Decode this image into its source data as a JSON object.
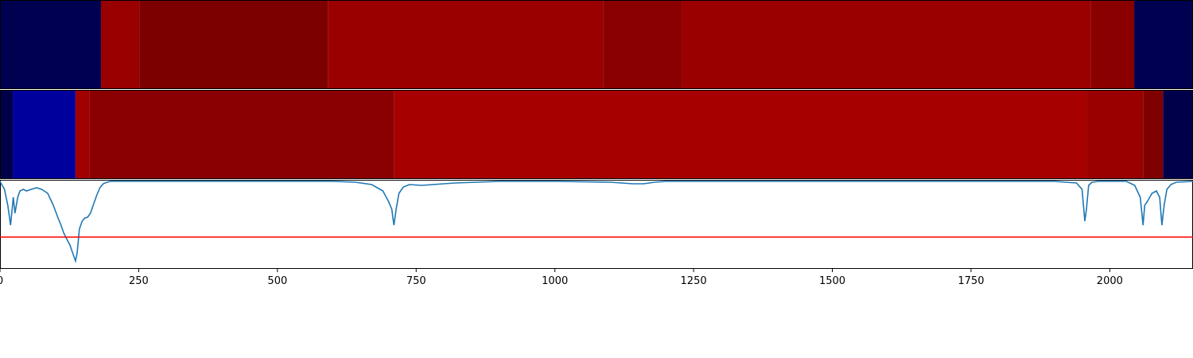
{
  "chart_data": [
    {
      "type": "heatmap",
      "panel": "top-band",
      "colormap": "seismic",
      "x_segments": [
        {
          "x0": 0,
          "x1": 182,
          "color": "#000050"
        },
        {
          "x0": 182,
          "x1": 251,
          "color": "#990000"
        },
        {
          "x0": 251,
          "x1": 591,
          "color": "#7d0000"
        },
        {
          "x0": 591,
          "x1": 1087,
          "color": "#9a0000"
        },
        {
          "x0": 1087,
          "x1": 1229,
          "color": "#8a0000"
        },
        {
          "x0": 1229,
          "x1": 1966,
          "color": "#9a0000"
        },
        {
          "x0": 1966,
          "x1": 2044,
          "color": "#8a0000"
        },
        {
          "x0": 2044,
          "x1": 2150,
          "color": "#000050"
        }
      ]
    },
    {
      "type": "heatmap",
      "panel": "middle-band",
      "colormap": "seismic",
      "x_segments": [
        {
          "x0": 0,
          "x1": 23,
          "color": "#00004a"
        },
        {
          "x0": 23,
          "x1": 136,
          "color": "#00009c"
        },
        {
          "x0": 136,
          "x1": 161,
          "color": "#a00000"
        },
        {
          "x0": 161,
          "x1": 710,
          "color": "#8a0000"
        },
        {
          "x0": 710,
          "x1": 1958,
          "color": "#a60000"
        },
        {
          "x0": 1958,
          "x1": 2060,
          "color": "#9a0000"
        },
        {
          "x0": 2060,
          "x1": 2096,
          "color": "#800000"
        },
        {
          "x0": 2096,
          "x1": 2150,
          "color": "#00004a"
        }
      ]
    },
    {
      "type": "line",
      "panel": "bottom-line",
      "xlim": [
        0,
        2150
      ],
      "ylim": [
        -1.1,
        0.02
      ],
      "x_ticks": [
        0,
        250,
        500,
        750,
        1000,
        1250,
        1500,
        1750,
        2000
      ],
      "x_tick_labels": [
        "0",
        "250",
        "500",
        "750",
        "1000",
        "1250",
        "1500",
        "1750",
        "2000"
      ],
      "grid": false,
      "series": [
        {
          "color": "#1f77b4",
          "x": [
            0,
            8,
            14,
            19,
            24,
            27,
            32,
            36,
            42,
            48,
            56,
            66,
            75,
            86,
            96,
            104,
            110,
            115,
            120,
            126,
            131,
            136,
            139,
            143,
            148,
            153,
            158,
            163,
            168,
            174,
            180,
            186,
            193,
            200,
            230,
            300,
            400,
            500,
            600,
            640,
            670,
            690,
            700,
            706,
            710,
            714,
            719,
            727,
            738,
            760,
            820,
            900,
            1000,
            1100,
            1140,
            1160,
            1180,
            1200,
            1230,
            1300,
            1500,
            1800,
            1900,
            1940,
            1950,
            1955,
            1958,
            1962,
            1968,
            1980,
            2000,
            2030,
            2045,
            2055,
            2060,
            2063,
            2068,
            2076,
            2084,
            2090,
            2094,
            2098,
            2103,
            2110,
            2120,
            2150
          ],
          "y": [
            0.0,
            -0.1,
            -0.3,
            -0.55,
            -0.2,
            -0.4,
            -0.2,
            -0.12,
            -0.1,
            -0.12,
            -0.1,
            -0.08,
            -0.1,
            -0.15,
            -0.3,
            -0.45,
            -0.55,
            -0.65,
            -0.72,
            -0.8,
            -0.9,
            -1.0,
            -0.9,
            -0.6,
            -0.5,
            -0.46,
            -0.45,
            -0.4,
            -0.3,
            -0.18,
            -0.08,
            -0.03,
            -0.01,
            0.0,
            0.0,
            0.0,
            0.0,
            0.0,
            0.0,
            -0.01,
            -0.04,
            -0.12,
            -0.25,
            -0.35,
            -0.55,
            -0.35,
            -0.15,
            -0.07,
            -0.04,
            -0.05,
            -0.02,
            0.0,
            0.0,
            -0.01,
            -0.03,
            -0.03,
            -0.01,
            0.0,
            0.0,
            0.0,
            0.0,
            0.0,
            0.0,
            -0.02,
            -0.1,
            -0.5,
            -0.35,
            -0.05,
            -0.01,
            0.0,
            0.0,
            0.0,
            -0.05,
            -0.2,
            -0.55,
            -0.3,
            -0.25,
            -0.15,
            -0.12,
            -0.2,
            -0.55,
            -0.3,
            -0.1,
            -0.04,
            -0.01,
            0.0
          ]
        },
        {
          "color": "#ff0000",
          "x": [
            0,
            2150
          ],
          "y": [
            -0.7,
            -0.7
          ]
        }
      ]
    }
  ]
}
